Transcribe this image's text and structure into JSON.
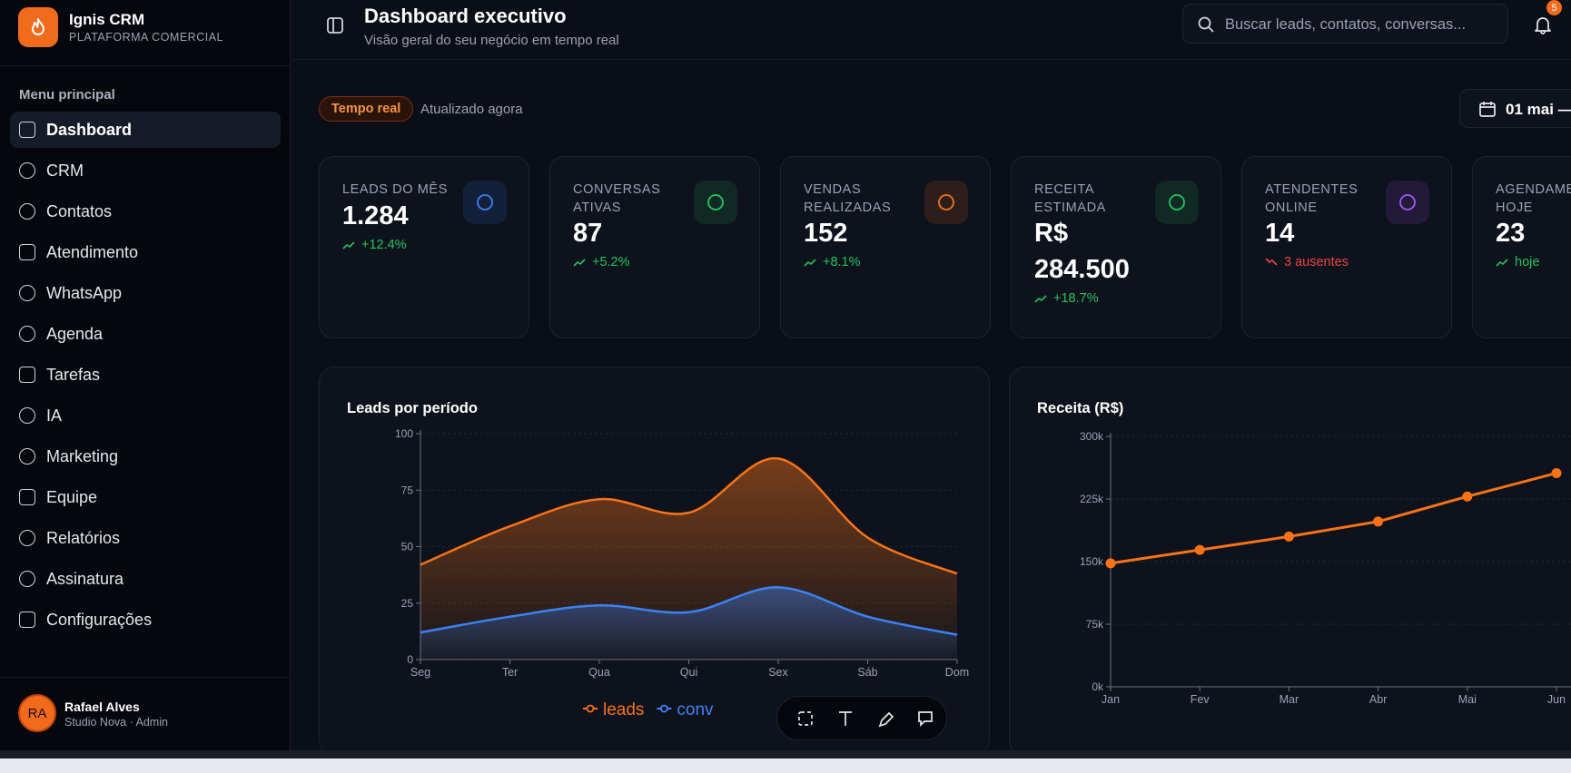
{
  "brand": {
    "name": "Ignis CRM",
    "tagline": "PLATAFORMA COMERCIAL"
  },
  "sidebar": {
    "section": "Menu principal",
    "items": [
      "Dashboard",
      "CRM",
      "Contatos",
      "Atendimento",
      "WhatsApp",
      "Agenda",
      "Tarefas",
      "IA",
      "Marketing",
      "Equipe",
      "Relatórios",
      "Assinatura",
      "Configurações"
    ],
    "active": 0
  },
  "user": {
    "initials": "RA",
    "name": "Rafael Alves",
    "role": "Studio Nova · Admin"
  },
  "header": {
    "title": "Dashboard executivo",
    "subtitle": "Visão geral do seu negócio em tempo real",
    "search_placeholder": "Buscar leads, contatos, conversas...",
    "notifications": 5
  },
  "status": {
    "badge": "Tempo real",
    "updated": "Atualizado agora",
    "date": "01 mai —"
  },
  "kpis": [
    {
      "label": "LEADS DO MÊS",
      "value": "1.284",
      "delta": "+12.4%",
      "trend": "up",
      "color": "#3b82f6"
    },
    {
      "label": "CONVERSAS ATIVAS",
      "value": "87",
      "delta": "+5.2%",
      "trend": "up",
      "color": "#22c55e"
    },
    {
      "label": "VENDAS REALIZADAS",
      "value": "152",
      "delta": "+8.1%",
      "trend": "up",
      "color": "#f97316"
    },
    {
      "label": "RECEITA ESTIMADA",
      "value": "R$ 284.500",
      "delta": "+18.7%",
      "trend": "up",
      "color": "#22c55e"
    },
    {
      "label": "ATENDENTES ONLINE",
      "value": "14",
      "delta": "3 ausentes",
      "trend": "down",
      "color": "#a855f7"
    },
    {
      "label": "AGENDAMENTOS HOJE",
      "value": "23",
      "delta": "hoje",
      "trend": "up",
      "color": "#3b82f6"
    }
  ],
  "charts": [
    {
      "type": "area",
      "title": "Leads por período",
      "categories": [
        "Seg",
        "Ter",
        "Qua",
        "Qui",
        "Sex",
        "Sáb",
        "Dom"
      ],
      "series": [
        {
          "name": "leads",
          "color": "#f97316",
          "values": [
            42,
            59,
            71,
            65,
            89,
            54,
            38
          ]
        },
        {
          "name": "conv",
          "color": "#3b82f6",
          "values": [
            12,
            19,
            24,
            21,
            32,
            19,
            11
          ]
        }
      ],
      "ylim": [
        0,
        100
      ],
      "yticks": [
        0,
        25,
        50,
        75,
        100
      ],
      "grid": true
    },
    {
      "type": "line",
      "title": "Receita (R$)",
      "categories": [
        "Jan",
        "Fev",
        "Mar",
        "Abr",
        "Mai",
        "Jun"
      ],
      "color": "#f97316",
      "values": [
        148000,
        164000,
        180000,
        198000,
        228000,
        256000
      ],
      "ylim": [
        0,
        300000
      ],
      "yticks": [
        {
          "value": 0,
          "label": "0k"
        },
        {
          "value": 75000,
          "label": "75k"
        },
        {
          "value": 150000,
          "label": "150k"
        },
        {
          "value": 225000,
          "label": "225k"
        },
        {
          "value": 300000,
          "label": "300k"
        }
      ],
      "grid": true
    }
  ]
}
